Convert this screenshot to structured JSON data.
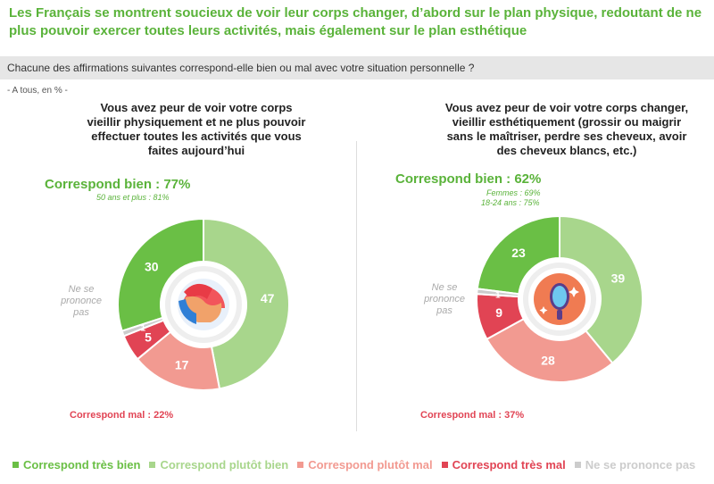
{
  "title": "Les Français se montrent soucieux de voir leur corps changer, d’abord sur le plan physique, redoutant de ne plus pouvoir exercer toutes leurs activités, mais également sur le plan esthétique",
  "question": "Chacune des affirmations suivantes correspond-elle bien ou mal avec votre situation personnelle ?",
  "base": "- A tous, en % -",
  "colors": {
    "tres_bien": "#6abf45",
    "plutot_bien": "#a8d68c",
    "plutot_mal": "#f29a91",
    "tres_mal": "#e14454",
    "nsp": "#cccccc",
    "headline_green": "#5ab33a"
  },
  "legend": [
    {
      "label": "Correspond très bien",
      "color": "#6abf45"
    },
    {
      "label": "Correspond plutôt bien",
      "color": "#a8d68c"
    },
    {
      "label": "Correspond plutôt mal",
      "color": "#f29a91"
    },
    {
      "label": "Correspond très mal",
      "color": "#e14454"
    },
    {
      "label": "Ne se prononce pas",
      "color": "#cccccc"
    }
  ],
  "chart_data": [
    {
      "type": "pie",
      "title": "Vous avez peur de voir votre corps vieillir physiquement et ne plus pouvoir effectuer toutes les activités que vous faites aujourd’hui",
      "headline": "Correspond bien : 77%",
      "sublabels": [
        "50 ans et plus : 81%"
      ],
      "bad_label": "Correspond mal : 22%",
      "icon": "flexed-arm-icon",
      "slices": [
        {
          "name": "Correspond très bien",
          "value": 30,
          "label": "30"
        },
        {
          "name": "Correspond plutôt bien",
          "value": 47,
          "label": "47"
        },
        {
          "name": "Correspond plutôt mal",
          "value": 17,
          "label": "17"
        },
        {
          "name": "Correspond très mal",
          "value": 5,
          "label": "5"
        },
        {
          "name": "Ne se prononce pas",
          "value": 1,
          "label": "1"
        }
      ],
      "nsp_label": "Ne se prononce pas"
    },
    {
      "type": "pie",
      "title": "Vous avez peur de voir votre corps changer, vieillir esthétiquement (grossir ou maigrir sans le maîtriser, perdre ses cheveux, avoir des cheveux blancs, etc.)",
      "headline": "Correspond bien : 62%",
      "sublabels": [
        "Femmes : 69%",
        "18-24 ans : 75%"
      ],
      "bad_label": "Correspond mal : 37%",
      "icon": "mirror-icon",
      "slices": [
        {
          "name": "Correspond très bien",
          "value": 23,
          "label": "23"
        },
        {
          "name": "Correspond plutôt bien",
          "value": 39,
          "label": "39"
        },
        {
          "name": "Correspond plutôt mal",
          "value": 28,
          "label": "28"
        },
        {
          "name": "Correspond très mal",
          "value": 9,
          "label": "9"
        },
        {
          "name": "Ne se prononce pas",
          "value": 1,
          "label": "1"
        }
      ],
      "nsp_label": "Ne se prononce pas"
    }
  ]
}
